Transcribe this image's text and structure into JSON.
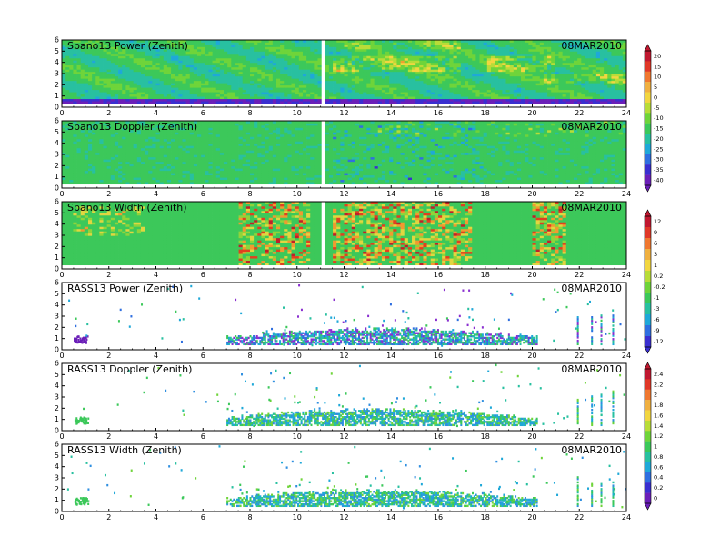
{
  "date_label": "08MAR2010",
  "chart_data": [
    {
      "type": "heatmap",
      "title": "Spano13 Power (Zenith)",
      "date": "08MAR2010",
      "xlim": [
        0,
        24
      ],
      "ylim": [
        0,
        6
      ],
      "xticks": [
        "0",
        "2",
        "4",
        "6",
        "8",
        "10",
        "12",
        "14",
        "16",
        "18",
        "20",
        "22",
        "24"
      ],
      "yticks": [
        "0",
        "1",
        "2",
        "3",
        "4",
        "5",
        "6"
      ],
      "data_gap_hours": 11.1,
      "colorbar": [
        "20",
        "15",
        "10",
        "5",
        "0",
        "-5",
        "-10",
        "-15",
        "-20",
        "-25",
        "-30",
        "-35",
        "-40"
      ]
    },
    {
      "type": "heatmap",
      "title": "Spano13 Doppler (Zenith)",
      "date": "08MAR2010",
      "xlim": [
        0,
        24
      ],
      "ylim": [
        0,
        6
      ],
      "xticks": [
        "0",
        "2",
        "4",
        "6",
        "8",
        "10",
        "12",
        "14",
        "16",
        "18",
        "20",
        "22",
        "24"
      ],
      "yticks": [
        "0",
        "1",
        "2",
        "3",
        "4",
        "5",
        "6"
      ],
      "data_gap_hours": 11.1
    },
    {
      "type": "heatmap",
      "title": "Spano13 Width (Zenith)",
      "date": "08MAR2010",
      "xlim": [
        0,
        24
      ],
      "ylim": [
        0,
        6
      ],
      "xticks": [
        "0",
        "2",
        "4",
        "6",
        "8",
        "10",
        "12",
        "14",
        "16",
        "18",
        "20",
        "22",
        "24"
      ],
      "yticks": [
        "0",
        "1",
        "2",
        "3",
        "4",
        "5",
        "6"
      ],
      "data_gap_hours": 11.1,
      "colorbar": [
        "12",
        "9",
        "6",
        "3",
        "1",
        "0.2",
        "-0.2",
        "-1",
        "-3",
        "-6",
        "-9",
        "-12"
      ]
    },
    {
      "type": "heatmap",
      "title": "RASS13 Power (Zenith)",
      "date": "08MAR2010",
      "xlim": [
        0,
        24
      ],
      "ylim": [
        0,
        6
      ],
      "xticks": [
        "0",
        "2",
        "4",
        "6",
        "8",
        "10",
        "12",
        "14",
        "16",
        "18",
        "20",
        "22",
        "24"
      ],
      "yticks": [
        "0",
        "1",
        "2",
        "3",
        "4",
        "5",
        "6"
      ]
    },
    {
      "type": "heatmap",
      "title": "RASS13 Doppler (Zenith)",
      "date": "08MAR2010",
      "xlim": [
        0,
        24
      ],
      "ylim": [
        0,
        6
      ],
      "xticks": [
        "0",
        "2",
        "4",
        "6",
        "8",
        "10",
        "12",
        "14",
        "16",
        "18",
        "20",
        "22",
        "24"
      ],
      "yticks": [
        "0",
        "1",
        "2",
        "3",
        "4",
        "5",
        "6"
      ],
      "colorbar": [
        "2.4",
        "2.2",
        "2",
        "1.8",
        "1.6",
        "1.4",
        "1.2",
        "1",
        "0.8",
        "0.6",
        "0.4",
        "0.2",
        "0"
      ]
    },
    {
      "type": "heatmap",
      "title": "RASS13 Width (Zenith)",
      "date": "08MAR2010",
      "xlim": [
        0,
        24
      ],
      "ylim": [
        0,
        6
      ],
      "xticks": [
        "0",
        "2",
        "4",
        "6",
        "8",
        "10",
        "12",
        "14",
        "16",
        "18",
        "20",
        "22",
        "24"
      ],
      "yticks": [
        "0",
        "1",
        "2",
        "3",
        "4",
        "5",
        "6"
      ]
    }
  ]
}
